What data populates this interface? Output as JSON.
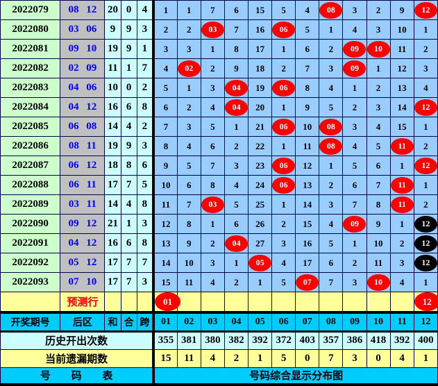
{
  "chart_data": {
    "type": "table",
    "title": "号码综合显示分布图",
    "left_columns": [
      "开奖期号",
      "后区",
      "和",
      "合",
      "跨"
    ],
    "number_columns": [
      "01",
      "02",
      "03",
      "04",
      "05",
      "06",
      "07",
      "08",
      "09",
      "10",
      "11",
      "12"
    ],
    "rows": [
      {
        "period": "2022079",
        "back": "08 12",
        "sum": "20",
        "he": "0",
        "kua": "4",
        "values": [
          "1",
          "1",
          "7",
          "6",
          "15",
          "5",
          "4",
          "08",
          "3",
          "2",
          "9",
          "12"
        ],
        "red": [
          8,
          12
        ],
        "black": []
      },
      {
        "period": "2022080",
        "back": "03 06",
        "sum": "9",
        "he": "9",
        "kua": "3",
        "values": [
          "2",
          "2",
          "03",
          "7",
          "16",
          "06",
          "5",
          "1",
          "4",
          "3",
          "10",
          "1"
        ],
        "red": [
          3,
          6
        ],
        "black": []
      },
      {
        "period": "2022081",
        "back": "09 10",
        "sum": "19",
        "he": "9",
        "kua": "1",
        "values": [
          "3",
          "3",
          "1",
          "8",
          "17",
          "1",
          "6",
          "2",
          "09",
          "10",
          "11",
          "2"
        ],
        "red": [
          9,
          10
        ],
        "black": []
      },
      {
        "period": "2022082",
        "back": "02 09",
        "sum": "11",
        "he": "1",
        "kua": "7",
        "values": [
          "4",
          "02",
          "2",
          "9",
          "18",
          "2",
          "7",
          "3",
          "09",
          "1",
          "12",
          "3"
        ],
        "red": [
          2,
          9
        ],
        "black": []
      },
      {
        "period": "2022083",
        "back": "04 06",
        "sum": "10",
        "he": "0",
        "kua": "2",
        "values": [
          "5",
          "1",
          "3",
          "04",
          "19",
          "06",
          "8",
          "4",
          "1",
          "2",
          "13",
          "4"
        ],
        "red": [
          4,
          6
        ],
        "black": []
      },
      {
        "period": "2022084",
        "back": "04 12",
        "sum": "16",
        "he": "6",
        "kua": "8",
        "values": [
          "6",
          "2",
          "4",
          "04",
          "20",
          "1",
          "9",
          "5",
          "2",
          "3",
          "14",
          "12"
        ],
        "red": [
          4,
          12
        ],
        "black": []
      },
      {
        "period": "2022085",
        "back": "06 08",
        "sum": "14",
        "he": "4",
        "kua": "2",
        "values": [
          "7",
          "3",
          "5",
          "1",
          "21",
          "06",
          "10",
          "08",
          "3",
          "4",
          "15",
          "1"
        ],
        "red": [
          6,
          8
        ],
        "black": []
      },
      {
        "period": "2022086",
        "back": "08 11",
        "sum": "19",
        "he": "9",
        "kua": "3",
        "values": [
          "8",
          "4",
          "6",
          "2",
          "22",
          "1",
          "11",
          "08",
          "4",
          "5",
          "11",
          "2"
        ],
        "red": [
          8,
          11
        ],
        "black": []
      },
      {
        "period": "2022087",
        "back": "06 12",
        "sum": "18",
        "he": "8",
        "kua": "6",
        "values": [
          "9",
          "5",
          "7",
          "3",
          "23",
          "06",
          "12",
          "1",
          "5",
          "6",
          "1",
          "12"
        ],
        "red": [
          6,
          12
        ],
        "black": []
      },
      {
        "period": "2022088",
        "back": "06 11",
        "sum": "17",
        "he": "7",
        "kua": "5",
        "values": [
          "10",
          "6",
          "8",
          "4",
          "24",
          "06",
          "13",
          "2",
          "6",
          "7",
          "11",
          "1"
        ],
        "red": [
          6,
          11
        ],
        "black": []
      },
      {
        "period": "2022089",
        "back": "03 11",
        "sum": "14",
        "he": "4",
        "kua": "8",
        "values": [
          "11",
          "7",
          "03",
          "5",
          "25",
          "1",
          "14",
          "3",
          "7",
          "8",
          "11",
          "2"
        ],
        "red": [
          3,
          11
        ],
        "black": []
      },
      {
        "period": "2022090",
        "back": "09 12",
        "sum": "21",
        "he": "1",
        "kua": "3",
        "values": [
          "12",
          "8",
          "1",
          "6",
          "26",
          "2",
          "15",
          "4",
          "09",
          "9",
          "1",
          "12"
        ],
        "red": [
          9
        ],
        "black": [
          12
        ]
      },
      {
        "period": "2022091",
        "back": "04 12",
        "sum": "16",
        "he": "6",
        "kua": "8",
        "values": [
          "13",
          "9",
          "2",
          "04",
          "27",
          "3",
          "16",
          "5",
          "1",
          "10",
          "2",
          "12"
        ],
        "red": [
          4
        ],
        "black": [
          12
        ]
      },
      {
        "period": "2022092",
        "back": "05 12",
        "sum": "17",
        "he": "7",
        "kua": "7",
        "values": [
          "14",
          "10",
          "3",
          "1",
          "05",
          "4",
          "17",
          "6",
          "2",
          "11",
          "3",
          "12"
        ],
        "red": [
          5
        ],
        "black": [
          12
        ]
      },
      {
        "period": "2022093",
        "back": "07 10",
        "sum": "17",
        "he": "7",
        "kua": "3",
        "values": [
          "15",
          "11",
          "4",
          "2",
          "1",
          "5",
          "07",
          "7",
          "3",
          "10",
          "4",
          "1"
        ],
        "red": [
          7,
          10
        ],
        "black": []
      }
    ],
    "prediction": {
      "label": "预测行",
      "values": [
        "01",
        "",
        "",
        "",
        "",
        "",
        "",
        "",
        "",
        "",
        "",
        "12"
      ],
      "red": [
        1,
        12
      ],
      "black": []
    },
    "history": {
      "label": "历史开出次数",
      "values": [
        "355",
        "381",
        "380",
        "382",
        "392",
        "372",
        "403",
        "357",
        "386",
        "418",
        "392",
        "400"
      ]
    },
    "omission": {
      "label": "当前遗漏期数",
      "values": [
        "15",
        "11",
        "4",
        "2",
        "1",
        "5",
        "0",
        "7",
        "3",
        "0",
        "4",
        "1"
      ]
    },
    "footer": {
      "left": "号 码 表",
      "right": "号码综合显示分布图"
    }
  },
  "colors": {
    "grid_cell": "#99CCFF",
    "period_column": "#CCFFCC",
    "back_zone_column": "#C0C0C0",
    "stat_columns": "#CCFFFF",
    "prediction_row": "#FFFF99",
    "band_rows": "#00CCFF",
    "ball_red": "#FF0000",
    "ball_black": "#000000",
    "back_number_text": "#0000FF",
    "prediction_text": "#FF0000"
  }
}
